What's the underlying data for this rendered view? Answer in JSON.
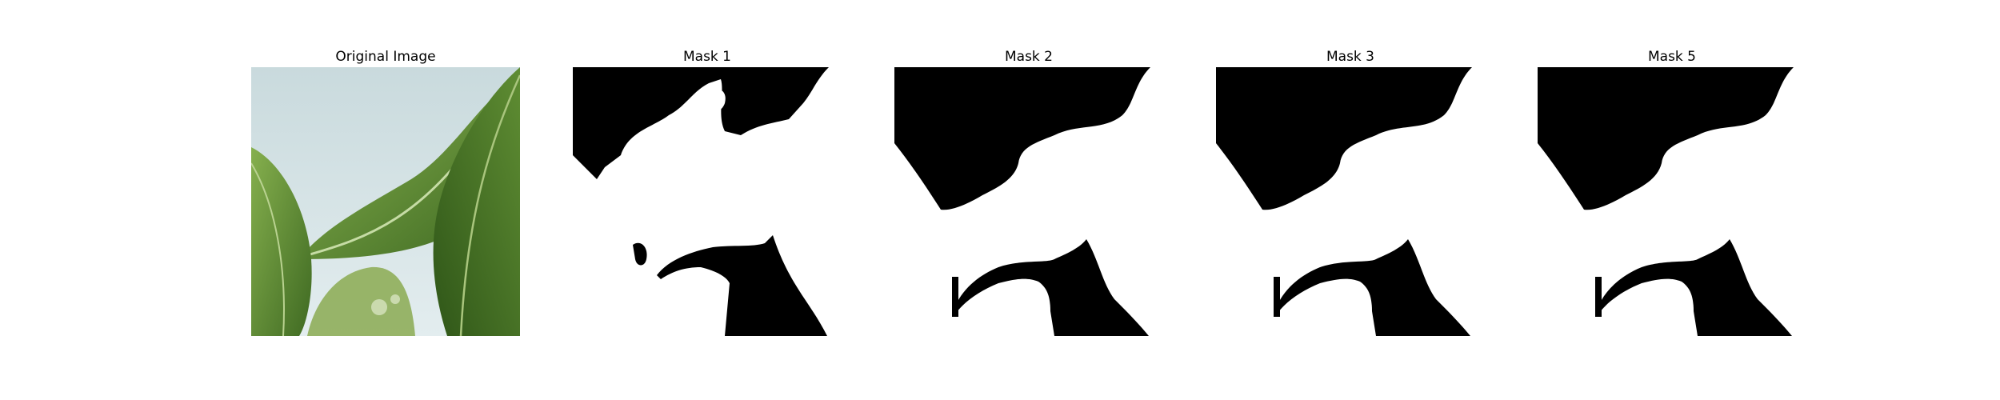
{
  "figure": {
    "panels": [
      {
        "title": "Original Image",
        "kind": "photo"
      },
      {
        "title": "Mask 1",
        "kind": "mask"
      },
      {
        "title": "Mask 2",
        "kind": "mask"
      },
      {
        "title": "Mask 3",
        "kind": "mask"
      },
      {
        "title": "Mask 5",
        "kind": "mask"
      }
    ]
  },
  "colors": {
    "background": "#ffffff",
    "mask_foreground": "#ffffff",
    "mask_background": "#000000",
    "sky": "#d8e6e8",
    "leaf_dark": "#4f7a2a",
    "leaf_light": "#7fa84a"
  }
}
